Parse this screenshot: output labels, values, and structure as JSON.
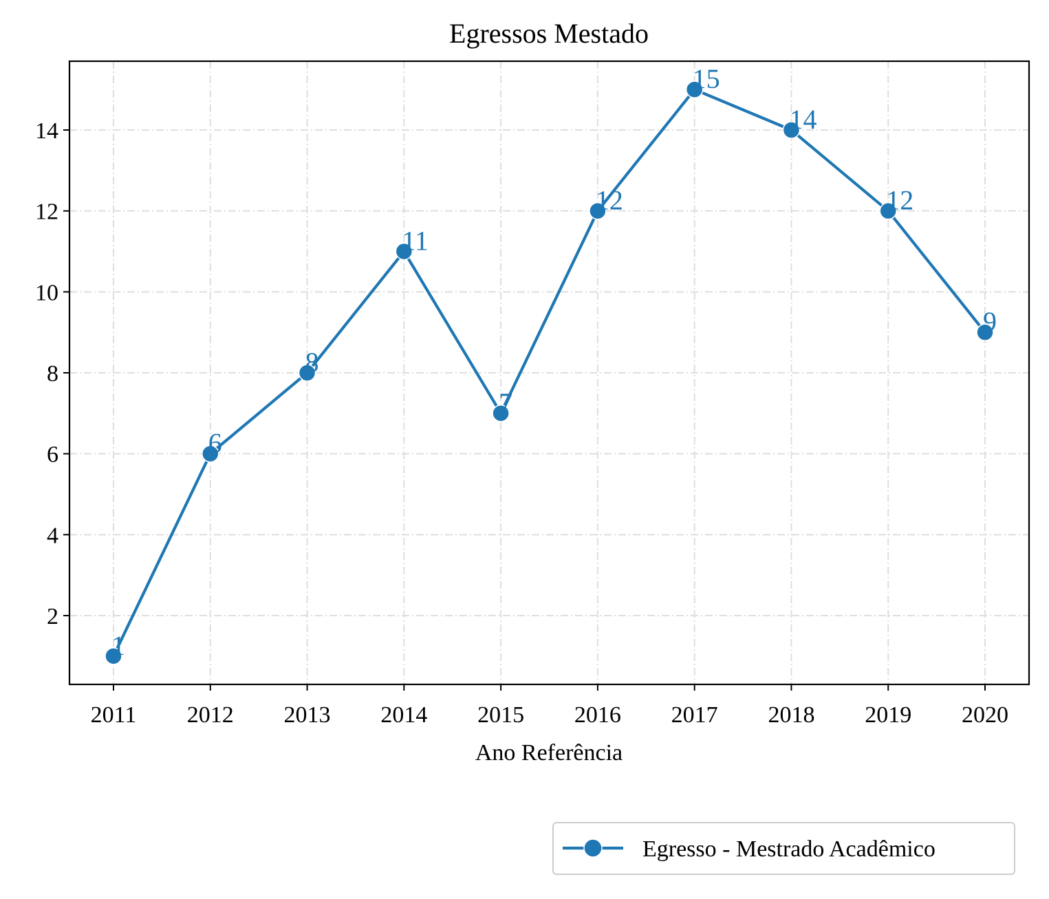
{
  "chart_data": {
    "type": "line",
    "title": "Egressos Mestado",
    "xlabel": "Ano Referência",
    "ylabel": "",
    "categories": [
      "2011",
      "2012",
      "2013",
      "2014",
      "2015",
      "2016",
      "2017",
      "2018",
      "2019",
      "2020"
    ],
    "series": [
      {
        "name": "Egresso - Mestrado Acadêmico",
        "values": [
          1,
          6,
          8,
          11,
          7,
          12,
          15,
          14,
          12,
          9
        ],
        "color": "#1f77b4",
        "marker": "circle"
      }
    ],
    "data_labels": [
      "1",
      "6",
      "8",
      "11",
      "7",
      "12",
      "15",
      "14",
      "12",
      "9"
    ],
    "yticks": [
      2,
      4,
      6,
      8,
      10,
      12,
      14
    ],
    "ytick_labels": [
      "2",
      "4",
      "6",
      "8",
      "10",
      "12",
      "14"
    ],
    "ylim": [
      0.3,
      15.7
    ],
    "grid": true,
    "legend_position": "bottom-right, below axes"
  }
}
